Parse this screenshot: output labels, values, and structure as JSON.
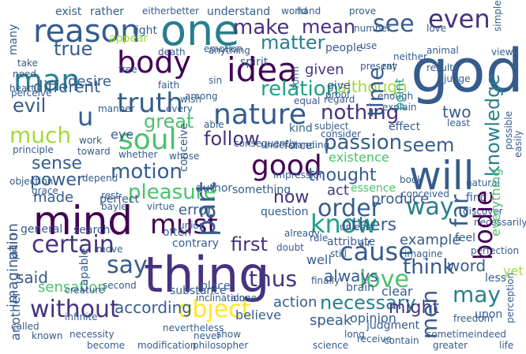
{
  "colors": {
    "c1": "#440154",
    "c2": "#46327e",
    "c3": "#365c8d",
    "c4": "#277f8e",
    "c5": "#1fa187",
    "c6": "#4ac16d",
    "c7": "#a0da39",
    "c8": "#fde725"
  },
  "words": [
    {
      "text": "god",
      "color": "c3"
    },
    {
      "text": "thing",
      "color": "c2"
    },
    {
      "text": "one",
      "color": "c4"
    },
    {
      "text": "reason",
      "color": "c3"
    },
    {
      "text": "mind",
      "color": "c1"
    },
    {
      "text": "will",
      "color": "c3"
    },
    {
      "text": "idea",
      "color": "c1"
    },
    {
      "text": "body",
      "color": "c1"
    },
    {
      "text": "nature",
      "color": "c3"
    },
    {
      "text": "man",
      "color": "c4"
    },
    {
      "text": "truth",
      "color": "c3"
    },
    {
      "text": "soul",
      "color": "c6"
    },
    {
      "text": "good",
      "color": "c1"
    },
    {
      "text": "certain",
      "color": "c2"
    },
    {
      "text": "must",
      "color": "c1"
    },
    {
      "text": "without",
      "color": "c2"
    },
    {
      "text": "object",
      "color": "c8"
    },
    {
      "text": "cause",
      "color": "c3"
    },
    {
      "text": "know",
      "color": "c5"
    },
    {
      "text": "order",
      "color": "c3"
    },
    {
      "text": "way",
      "color": "c4"
    },
    {
      "text": "even",
      "color": "c2"
    },
    {
      "text": "see",
      "color": "c3"
    },
    {
      "text": "passion",
      "color": "c3"
    },
    {
      "text": "motion",
      "color": "c3"
    },
    {
      "text": "pleasure",
      "color": "c6"
    },
    {
      "text": "love",
      "color": "c6"
    },
    {
      "text": "may",
      "color": "c4"
    },
    {
      "text": "say",
      "color": "c3"
    },
    {
      "text": "thus",
      "color": "c2"
    },
    {
      "text": "nothing",
      "color": "c2"
    },
    {
      "text": "relation",
      "color": "c5"
    },
    {
      "text": "make",
      "color": "c2"
    },
    {
      "text": "matter",
      "color": "c4"
    },
    {
      "text": "true",
      "color": "c3"
    },
    {
      "text": "evil",
      "color": "c3"
    },
    {
      "text": "much",
      "color": "c7"
    },
    {
      "text": "sense",
      "color": "c3"
    },
    {
      "text": "power",
      "color": "c3"
    },
    {
      "text": "part",
      "color": "c3"
    },
    {
      "text": "follow",
      "color": "c2"
    },
    {
      "text": "first",
      "color": "c2"
    },
    {
      "text": "think",
      "color": "c3"
    },
    {
      "text": "bodie",
      "color": "c1"
    },
    {
      "text": "far",
      "color": "c3"
    },
    {
      "text": "thought",
      "color": "c3"
    },
    {
      "text": "necessary",
      "color": "c4"
    },
    {
      "text": "always",
      "color": "c3"
    },
    {
      "text": "others",
      "color": "c3"
    },
    {
      "text": "time",
      "color": "c3"
    },
    {
      "text": "knowledge",
      "color": "c4"
    },
    {
      "text": "men",
      "color": "c3"
    },
    {
      "text": "seem",
      "color": "c3"
    },
    {
      "text": "u",
      "color": "c3"
    },
    {
      "text": "said",
      "color": "c3"
    },
    {
      "text": "sensation",
      "color": "c6"
    },
    {
      "text": "according",
      "color": "c3"
    },
    {
      "text": "might",
      "color": "c2"
    },
    {
      "text": "now",
      "color": "c2"
    },
    {
      "text": "act",
      "color": "c2"
    },
    {
      "text": "word",
      "color": "c3"
    },
    {
      "text": "action",
      "color": "c3"
    },
    {
      "text": "great",
      "color": "c6"
    },
    {
      "text": "desire",
      "color": "c3"
    },
    {
      "text": "different",
      "color": "c3"
    },
    {
      "text": "although",
      "color": "c7"
    },
    {
      "text": "given",
      "color": "c2"
    },
    {
      "text": "mean",
      "color": "c2"
    },
    {
      "text": "two",
      "color": "c3"
    },
    {
      "text": "made",
      "color": "c3"
    },
    {
      "text": "error",
      "color": "c3"
    },
    {
      "text": "believe",
      "color": "c3"
    },
    {
      "text": "example",
      "color": "c3"
    },
    {
      "text": "existence",
      "color": "c6"
    },
    {
      "text": "produce",
      "color": "c3"
    },
    {
      "text": "speak",
      "color": "c3"
    },
    {
      "text": "clear",
      "color": "c3"
    },
    {
      "text": "opinion",
      "color": "c3"
    },
    {
      "text": "well",
      "color": "c3"
    },
    {
      "text": "imagination",
      "color": "c3"
    },
    {
      "text": "pain",
      "color": "c3"
    },
    {
      "text": "another",
      "color": "c3"
    },
    {
      "text": "exist",
      "color": "c3"
    },
    {
      "text": "rather",
      "color": "c3"
    },
    {
      "text": "understand",
      "color": "c3"
    },
    {
      "text": "light",
      "color": "c3"
    },
    {
      "text": "people",
      "color": "c3"
    },
    {
      "text": "world",
      "color": "c3"
    },
    {
      "text": "emotion",
      "color": "c3"
    },
    {
      "text": "judge",
      "color": "c3"
    },
    {
      "text": "something",
      "color": "c3"
    },
    {
      "text": "question",
      "color": "c3"
    },
    {
      "text": "contrary",
      "color": "c3"
    },
    {
      "text": "capable",
      "color": "c3"
    },
    {
      "text": "search",
      "color": "c3"
    },
    {
      "text": "general",
      "color": "c3"
    },
    {
      "text": "substance",
      "color": "c3"
    },
    {
      "text": "brain",
      "color": "c3"
    },
    {
      "text": "upon",
      "color": "c3"
    },
    {
      "text": "many",
      "color": "c3"
    },
    {
      "text": "appear",
      "color": "c7"
    },
    {
      "text": "conceive",
      "color": "c3"
    },
    {
      "text": "often",
      "color": "c3"
    },
    {
      "text": "anything",
      "color": "c3"
    },
    {
      "text": "consequently",
      "color": "c3"
    },
    {
      "text": "understanding",
      "color": "c3"
    },
    {
      "text": "regard",
      "color": "c3"
    },
    {
      "text": "give",
      "color": "c3"
    },
    {
      "text": "point",
      "color": "c5"
    },
    {
      "text": "author",
      "color": "c3"
    },
    {
      "text": "kind",
      "color": "c3"
    },
    {
      "text": "force",
      "color": "c3"
    },
    {
      "text": "effect",
      "color": "c3"
    },
    {
      "text": "subject",
      "color": "c3"
    },
    {
      "text": "consider",
      "color": "c3"
    },
    {
      "text": "everything",
      "color": "c6"
    },
    {
      "text": "essence",
      "color": "c6"
    },
    {
      "text": "book",
      "color": "c3"
    },
    {
      "text": "find",
      "color": "c3"
    },
    {
      "text": "yet",
      "color": "c7"
    },
    {
      "text": "feel",
      "color": "c3"
    },
    {
      "text": "place",
      "color": "c3"
    },
    {
      "text": "alone",
      "color": "c3"
    },
    {
      "text": "never",
      "color": "c3"
    },
    {
      "text": "eye",
      "color": "c3"
    },
    {
      "text": "whether",
      "color": "c3"
    },
    {
      "text": "work",
      "color": "c3"
    },
    {
      "text": "toward",
      "color": "c3"
    },
    {
      "text": "principle",
      "color": "c3"
    },
    {
      "text": "perceive",
      "color": "c3"
    },
    {
      "text": "need",
      "color": "c3"
    },
    {
      "text": "take",
      "color": "c3"
    },
    {
      "text": "heart",
      "color": "c3"
    },
    {
      "text": "spirit",
      "color": "c3"
    },
    {
      "text": "present",
      "color": "c3"
    },
    {
      "text": "use",
      "color": "c3"
    },
    {
      "text": "enough",
      "color": "c3"
    },
    {
      "text": "explain",
      "color": "c3"
    },
    {
      "text": "least",
      "color": "c3"
    },
    {
      "text": "form",
      "color": "c3"
    },
    {
      "text": "discover",
      "color": "c3"
    },
    {
      "text": "conceived",
      "color": "c3"
    },
    {
      "text": "natural",
      "color": "c3"
    },
    {
      "text": "sin",
      "color": "c3"
    },
    {
      "text": "impression",
      "color": "c3"
    },
    {
      "text": "already",
      "color": "c3"
    },
    {
      "text": "still",
      "color": "c3"
    },
    {
      "text": "attribute",
      "color": "c3"
    },
    {
      "text": "doubt",
      "color": "c3"
    },
    {
      "text": "rule",
      "color": "c3"
    },
    {
      "text": "imagine",
      "color": "c3"
    },
    {
      "text": "perception",
      "color": "c3"
    },
    {
      "text": "freedom",
      "color": "c3"
    },
    {
      "text": "less",
      "color": "c3"
    },
    {
      "text": "receive",
      "color": "c3"
    },
    {
      "text": "judgment",
      "color": "c3"
    },
    {
      "text": "finally",
      "color": "c3"
    },
    {
      "text": "perfect",
      "color": "c3"
    },
    {
      "text": "virtue",
      "color": "c3"
    },
    {
      "text": "infinite",
      "color": "c3"
    },
    {
      "text": "second",
      "color": "c3"
    },
    {
      "text": "creature",
      "color": "c3"
    },
    {
      "text": "bayle",
      "color": "c3"
    },
    {
      "text": "rest",
      "color": "c3"
    },
    {
      "text": "necessity",
      "color": "c3"
    },
    {
      "text": "become",
      "color": "c3"
    },
    {
      "text": "modification",
      "color": "c3"
    },
    {
      "text": "philosopher",
      "color": "c3"
    },
    {
      "text": "show",
      "color": "c3"
    },
    {
      "text": "science",
      "color": "c3"
    },
    {
      "text": "greater",
      "color": "c3"
    },
    {
      "text": "indeed",
      "color": "c3"
    },
    {
      "text": "life",
      "color": "c3"
    },
    {
      "text": "air",
      "color": "c3"
    },
    {
      "text": "hand",
      "color": "c3"
    },
    {
      "text": "prove",
      "color": "c3"
    },
    {
      "text": "animal",
      "color": "c3"
    },
    {
      "text": "ray",
      "color": "c3"
    },
    {
      "text": "result",
      "color": "c3"
    },
    {
      "text": "view",
      "color": "c3"
    },
    {
      "text": "neither",
      "color": "c3"
    },
    {
      "text": "proof",
      "color": "c3"
    },
    {
      "text": "equal",
      "color": "c3"
    },
    {
      "text": "faith",
      "color": "c3"
    },
    {
      "text": "among",
      "color": "c3"
    },
    {
      "text": "able",
      "color": "c3"
    },
    {
      "text": "whose",
      "color": "c3"
    },
    {
      "text": "wish",
      "color": "c3"
    },
    {
      "text": "every",
      "color": "c3"
    },
    {
      "text": "manner",
      "color": "c3"
    },
    {
      "text": "objection",
      "color": "c3"
    },
    {
      "text": "grace",
      "color": "c3"
    },
    {
      "text": "simple",
      "color": "c3"
    },
    {
      "text": "love",
      "color": "c3"
    },
    {
      "text": "eitherbetter",
      "color": "c3"
    },
    {
      "text": "number",
      "color": "c3"
    },
    {
      "text": "death",
      "color": "c3"
    },
    {
      "text": "depend",
      "color": "c3"
    },
    {
      "text": "move",
      "color": "c3"
    },
    {
      "text": "called",
      "color": "c3"
    },
    {
      "text": "known",
      "color": "c3"
    },
    {
      "text": "free",
      "color": "c3"
    },
    {
      "text": "long",
      "color": "c3"
    },
    {
      "text": "contain",
      "color": "c3"
    },
    {
      "text": "unless",
      "color": "c3"
    },
    {
      "text": "sometime",
      "color": "c3"
    },
    {
      "text": "nevertheless",
      "color": "c3"
    },
    {
      "text": "inclination",
      "color": "c3"
    },
    {
      "text": "union",
      "color": "c3"
    },
    {
      "text": "easily",
      "color": "c3"
    },
    {
      "text": "possible",
      "color": "c3"
    },
    {
      "text": "necessarily",
      "color": "c3"
    },
    {
      "text": "perfection",
      "color": "c3"
    },
    {
      "text": "wisdom",
      "color": "c3"
    },
    {
      "text": "though",
      "color": "c3"
    }
  ]
}
